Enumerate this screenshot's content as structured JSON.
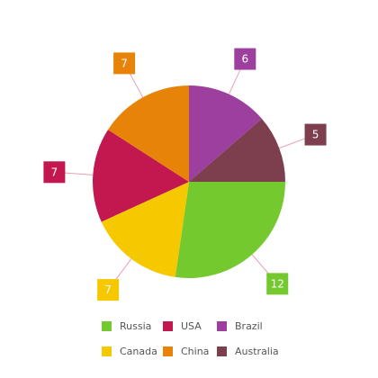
{
  "chart_data": {
    "type": "pie",
    "categories": [
      "Russia",
      "USA",
      "Brazil",
      "Canada",
      "China",
      "Australia"
    ],
    "values": [
      12,
      7,
      6,
      7,
      7,
      5
    ],
    "slice_order": [
      "Brazil",
      "Australia",
      "Russia",
      "Canada",
      "USA",
      "China"
    ],
    "colors": {
      "Russia": "#73c92d",
      "USA": "#c2174f",
      "Brazil": "#9c3f9e",
      "Canada": "#f5c800",
      "China": "#e8830a",
      "Australia": "#7d3f4e"
    },
    "data_labels": "outside-callout",
    "legend_position": "bottom"
  }
}
